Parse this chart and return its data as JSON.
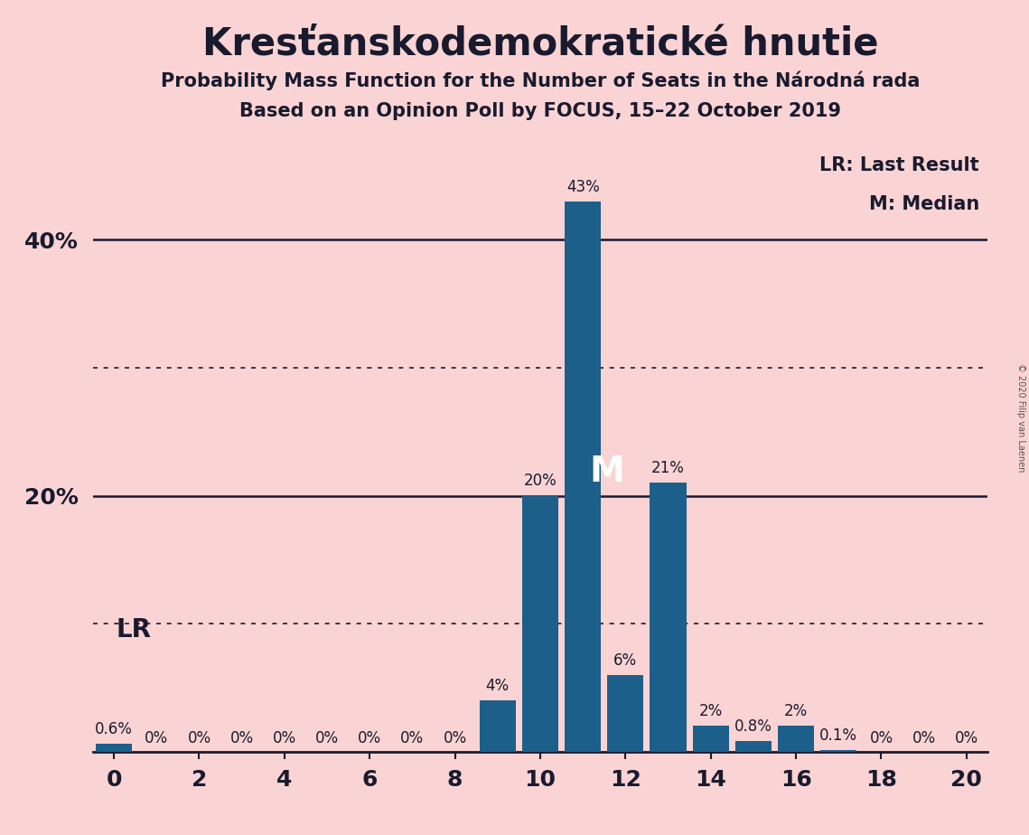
{
  "title": "Kresťanskodemokratické hnutie",
  "subtitle1": "Probability Mass Function for the Number of Seats in the Národná rada",
  "subtitle2_full": "Based on an Opinion Poll by FOCUS, 15–22 October 2019",
  "seats": [
    0,
    1,
    2,
    3,
    4,
    5,
    6,
    7,
    8,
    9,
    10,
    11,
    12,
    13,
    14,
    15,
    16,
    17,
    18,
    19,
    20
  ],
  "probabilities": [
    0.6,
    0,
    0,
    0,
    0,
    0,
    0,
    0,
    0,
    4,
    20,
    43,
    6,
    21,
    2,
    0.8,
    2,
    0.1,
    0,
    0,
    0
  ],
  "bar_color": "#1c5f8a",
  "background_color": "#fad4d4",
  "median_seat": 11,
  "lr_seat": 0,
  "legend_lr": "LR: Last Result",
  "legend_m": "M: Median",
  "solid_yticks": [
    20,
    40
  ],
  "dotted_yticks": [
    10,
    30
  ],
  "ylim": [
    0,
    47
  ],
  "xlim": [
    -0.5,
    20.5
  ],
  "copyright_text": "© 2020 Filip van Laenen",
  "lr_label": "LR",
  "m_label": "M",
  "title_fontsize": 30,
  "subtitle_fontsize": 15,
  "axis_tick_fontsize": 18,
  "bar_label_fontsize": 12,
  "legend_fontsize": 15,
  "lr_fontsize": 20,
  "ytick_labels": [
    "20%",
    "40%"
  ],
  "ytick_values": [
    20,
    40
  ]
}
